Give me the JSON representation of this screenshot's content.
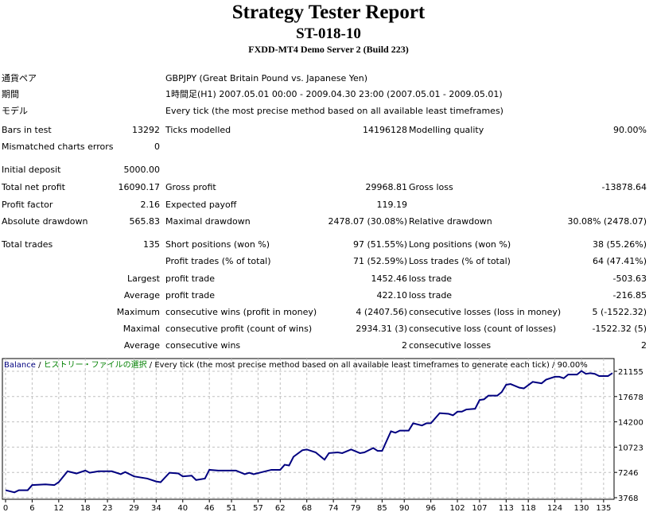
{
  "header": {
    "title": "Strategy Tester Report",
    "code": "ST-018-10",
    "server": "FXDD-MT4 Demo Server 2 (Build 223)"
  },
  "info": [
    {
      "label": "通貨ペア",
      "value": "GBPJPY (Great Britain Pound vs. Japanese Yen)"
    },
    {
      "label": "期間",
      "value": "1時間足(H1) 2007.05.01 00:00 - 2009.04.30 23:00 (2007.05.01 - 2009.05.01)"
    },
    {
      "label": "モデル",
      "value": "Every tick (the most precise method based on all available least timeframes)"
    }
  ],
  "rows": [
    {
      "l1": "Bars in test",
      "v1": "13292",
      "l2": "Ticks modelled",
      "v2": "14196128",
      "l3": "Modelling quality",
      "v3": "90.00%"
    },
    {
      "l1": "Mismatched charts errors",
      "v1": "0"
    },
    {
      "l1": "Initial deposit",
      "v1": "5000.00"
    },
    {
      "l1": "Total net profit",
      "v1": "16090.17",
      "l2": "Gross profit",
      "v2": "29968.81",
      "l3": "Gross loss",
      "v3": "-13878.64"
    },
    {
      "l1": "Profit factor",
      "v1": "2.16",
      "l2": "Expected payoff",
      "v2": "119.19"
    },
    {
      "l1": "Absolute drawdown",
      "v1": "565.83",
      "l2": "Maximal drawdown",
      "v2": "2478.07 (30.08%)",
      "l3": "Relative drawdown",
      "v3": "30.08% (2478.07)"
    },
    {
      "l1": "Total trades",
      "v1": "135",
      "l2": "Short positions (won %)",
      "v2": "97 (51.55%)",
      "l3": "Long positions (won %)",
      "v3": "38 (55.26%)"
    },
    {
      "l2": "Profit trades (% of total)",
      "v2": "71 (52.59%)",
      "l3": "Loss trades (% of total)",
      "v3": "64 (47.41%)"
    },
    {
      "v1": "Largest",
      "l2": "profit trade",
      "v2": "1452.46",
      "l3": "loss trade",
      "v3": "-503.63"
    },
    {
      "v1": "Average",
      "l2": "profit trade",
      "v2": "422.10",
      "l3": "loss trade",
      "v3": "-216.85"
    },
    {
      "v1": "Maximum",
      "l2": "consecutive wins (profit in money)",
      "v2": "4 (2407.56)",
      "l3": "consecutive losses (loss in money)",
      "v3": "5 (-1522.32)"
    },
    {
      "v1": "Maximal",
      "l2": "consecutive profit (count of wins)",
      "v2": "2934.31 (3)",
      "l3": "consecutive loss (count of losses)",
      "v3": "-1522.32 (5)"
    },
    {
      "v1": "Average",
      "l2": "consecutive wins",
      "v2": "2",
      "l3": "consecutive losses",
      "v3": "2"
    }
  ],
  "chart_data": {
    "type": "line",
    "legend": {
      "series": "Balance",
      "sep": " / ",
      "source": "ヒストリー・ファイルの選択",
      "model": "Every tick (the most precise method based on all available least timeframes to generate each tick)",
      "quality": "90.00%"
    },
    "colors": {
      "line": "#000080",
      "legend_series": "#000080",
      "legend_source": "#008000"
    },
    "yticks": [
      3768,
      7246,
      10723,
      14200,
      17678,
      21155
    ],
    "xticks": [
      0,
      6,
      12,
      18,
      23,
      29,
      34,
      40,
      46,
      51,
      57,
      62,
      68,
      74,
      79,
      85,
      90,
      96,
      102,
      107,
      113,
      118,
      124,
      130,
      135
    ],
    "xlim": [
      0,
      137
    ],
    "ylim": [
      3768,
      21155
    ],
    "grid": true,
    "points": [
      [
        0,
        4800
      ],
      [
        2,
        4500
      ],
      [
        3,
        4800
      ],
      [
        5,
        4800
      ],
      [
        6,
        5500
      ],
      [
        9,
        5600
      ],
      [
        11,
        5500
      ],
      [
        12,
        5900
      ],
      [
        14,
        7400
      ],
      [
        16,
        7100
      ],
      [
        18,
        7500
      ],
      [
        19,
        7200
      ],
      [
        21,
        7400
      ],
      [
        24,
        7400
      ],
      [
        26,
        7000
      ],
      [
        27,
        7300
      ],
      [
        29,
        6700
      ],
      [
        32,
        6400
      ],
      [
        34,
        6000
      ],
      [
        35,
        5900
      ],
      [
        37,
        7200
      ],
      [
        39,
        7100
      ],
      [
        40,
        6700
      ],
      [
        42,
        6800
      ],
      [
        43,
        6200
      ],
      [
        45,
        6400
      ],
      [
        46,
        7600
      ],
      [
        48,
        7500
      ],
      [
        52,
        7500
      ],
      [
        54,
        7000
      ],
      [
        55,
        7200
      ],
      [
        56,
        7000
      ],
      [
        58,
        7300
      ],
      [
        60,
        7600
      ],
      [
        62,
        7600
      ],
      [
        63,
        8300
      ],
      [
        64,
        8200
      ],
      [
        65,
        9400
      ],
      [
        67,
        10300
      ],
      [
        68,
        10400
      ],
      [
        70,
        10000
      ],
      [
        72,
        9000
      ],
      [
        73,
        9900
      ],
      [
        75,
        10000
      ],
      [
        76,
        9900
      ],
      [
        78,
        10400
      ],
      [
        80,
        9900
      ],
      [
        81,
        10000
      ],
      [
        83,
        10600
      ],
      [
        84,
        10200
      ],
      [
        85,
        10200
      ],
      [
        87,
        12900
      ],
      [
        88,
        12700
      ],
      [
        89,
        13000
      ],
      [
        91,
        13000
      ],
      [
        92,
        14000
      ],
      [
        94,
        13700
      ],
      [
        95,
        14000
      ],
      [
        96,
        14000
      ],
      [
        98,
        15400
      ],
      [
        100,
        15300
      ],
      [
        101,
        15100
      ],
      [
        102,
        15600
      ],
      [
        103,
        15600
      ],
      [
        104,
        15900
      ],
      [
        106,
        16000
      ],
      [
        107,
        17200
      ],
      [
        108,
        17300
      ],
      [
        109,
        17800
      ],
      [
        111,
        17800
      ],
      [
        112,
        18300
      ],
      [
        113,
        19300
      ],
      [
        114,
        19400
      ],
      [
        116,
        18900
      ],
      [
        117,
        18800
      ],
      [
        119,
        19700
      ],
      [
        120,
        19600
      ],
      [
        121,
        19500
      ],
      [
        122,
        20000
      ],
      [
        124,
        20400
      ],
      [
        125,
        20400
      ],
      [
        126,
        20200
      ],
      [
        127,
        20700
      ],
      [
        129,
        20700
      ],
      [
        130,
        21200
      ],
      [
        131,
        20800
      ],
      [
        132,
        20900
      ],
      [
        133,
        20800
      ],
      [
        134,
        20500
      ],
      [
        136,
        20500
      ],
      [
        137,
        20900
      ]
    ]
  }
}
